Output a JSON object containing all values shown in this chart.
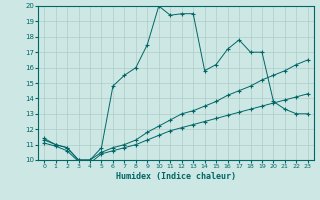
{
  "xlabel": "Humidex (Indice chaleur)",
  "ylabel": "",
  "xlim": [
    -0.5,
    23.5
  ],
  "ylim": [
    10,
    20
  ],
  "yticks": [
    10,
    11,
    12,
    13,
    14,
    15,
    16,
    17,
    18,
    19,
    20
  ],
  "xticks": [
    0,
    1,
    2,
    3,
    4,
    5,
    6,
    7,
    8,
    9,
    10,
    11,
    12,
    13,
    14,
    15,
    16,
    17,
    18,
    19,
    20,
    21,
    22,
    23
  ],
  "background_color": "#cde8e4",
  "grid_color": "#b0ccc8",
  "line_color": "#006666",
  "lines": [
    {
      "x": [
        0,
        1,
        2,
        3,
        4,
        5,
        6,
        7,
        8,
        9,
        10,
        11,
        12,
        13,
        14,
        15,
        16,
        17,
        18,
        19,
        20,
        21,
        22,
        23
      ],
      "y": [
        11.4,
        11.0,
        10.8,
        10.0,
        10.0,
        10.8,
        14.8,
        15.5,
        16.0,
        17.5,
        20.0,
        19.4,
        19.5,
        19.5,
        15.8,
        16.2,
        17.2,
        17.8,
        17.0,
        17.0,
        13.8,
        13.3,
        13.0,
        13.0
      ]
    },
    {
      "x": [
        0,
        1,
        2,
        3,
        4,
        5,
        6,
        7,
        8,
        9,
        10,
        11,
        12,
        13,
        14,
        15,
        16,
        17,
        18,
        19,
        20,
        21,
        22,
        23
      ],
      "y": [
        11.3,
        11.0,
        10.8,
        10.0,
        10.0,
        10.5,
        10.8,
        11.0,
        11.3,
        11.8,
        12.2,
        12.6,
        13.0,
        13.2,
        13.5,
        13.8,
        14.2,
        14.5,
        14.8,
        15.2,
        15.5,
        15.8,
        16.2,
        16.5
      ]
    },
    {
      "x": [
        0,
        1,
        2,
        3,
        4,
        5,
        6,
        7,
        8,
        9,
        10,
        11,
        12,
        13,
        14,
        15,
        16,
        17,
        18,
        19,
        20,
        21,
        22,
        23
      ],
      "y": [
        11.1,
        10.9,
        10.6,
        9.9,
        9.8,
        10.4,
        10.6,
        10.8,
        11.0,
        11.3,
        11.6,
        11.9,
        12.1,
        12.3,
        12.5,
        12.7,
        12.9,
        13.1,
        13.3,
        13.5,
        13.7,
        13.9,
        14.1,
        14.3
      ]
    }
  ]
}
